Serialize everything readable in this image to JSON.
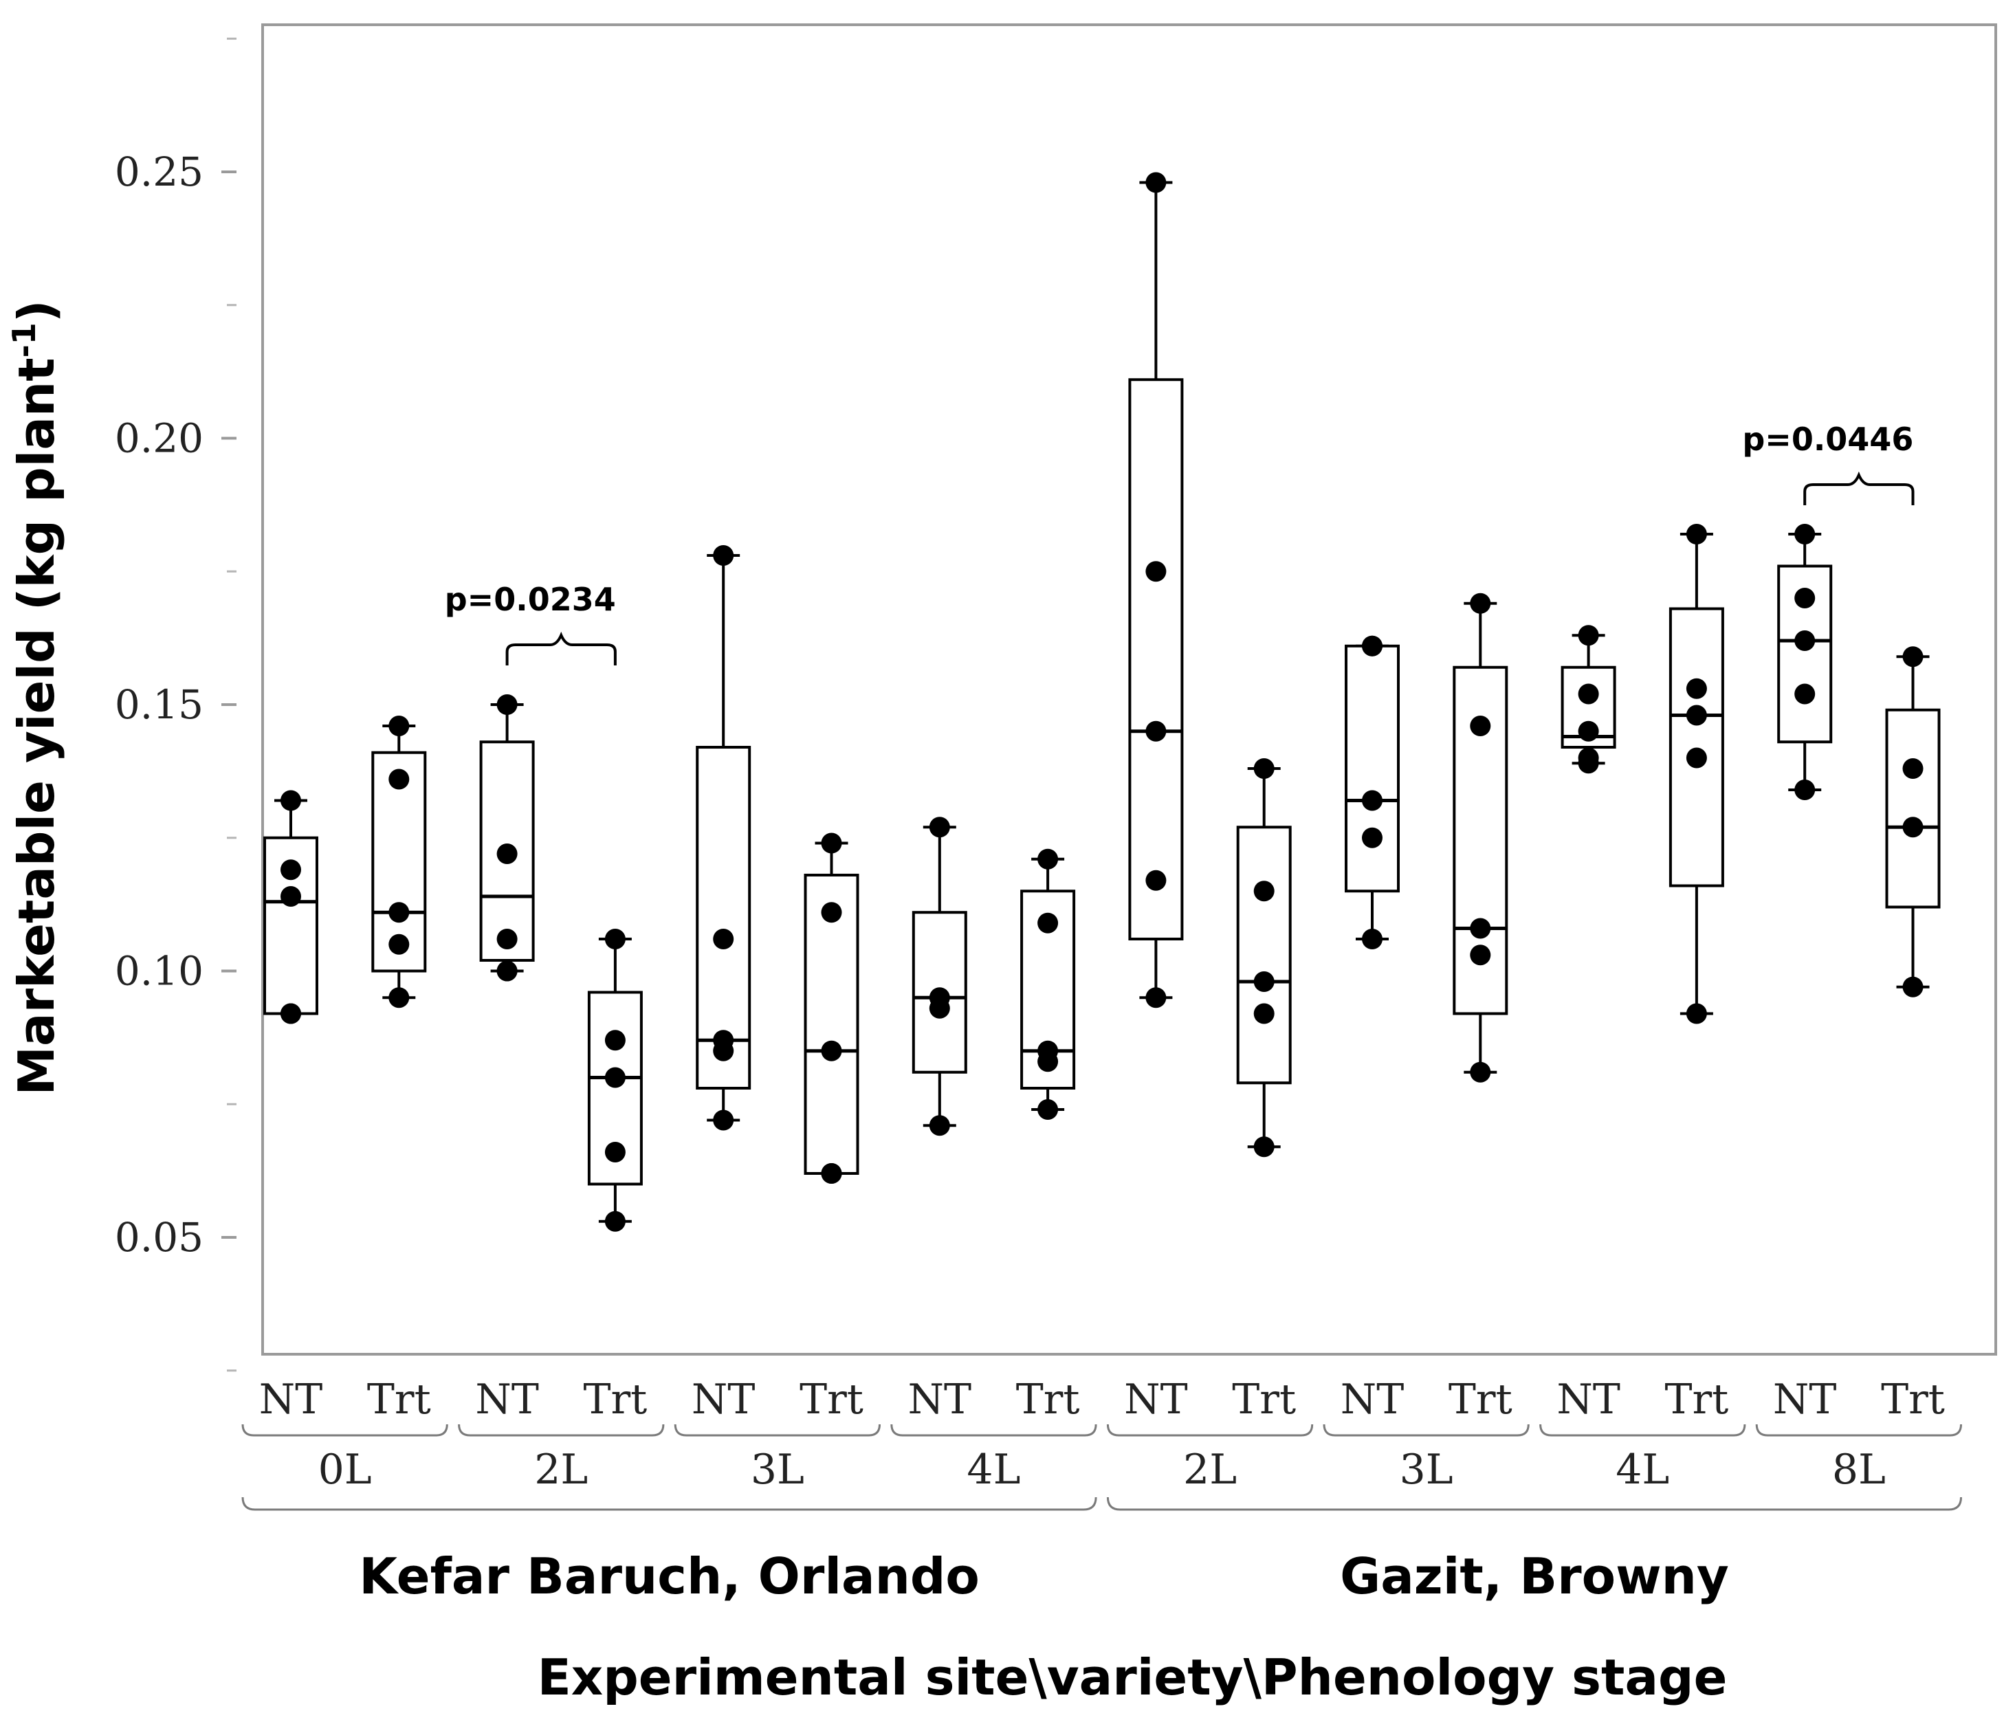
{
  "chart_data": {
    "type": "box",
    "ylabel": "Marketable yield (kg plant",
    "ylabel_sup": "-1",
    "ylabel_close": ")",
    "xlabel": "Experimental site\\variety\\Phenology stage",
    "ylim": [
      0.025,
      0.28
    ],
    "yticks": [
      0.05,
      0.1,
      0.15,
      0.2,
      0.25
    ],
    "ytick_labels": [
      "0.05",
      "0.10",
      "0.15",
      "0.20",
      "0.25"
    ],
    "sites": [
      {
        "name": "Kefar Baruch, Orlando",
        "stages": [
          "0L",
          "2L",
          "3L",
          "4L"
        ]
      },
      {
        "name": "Gazit, Browny",
        "stages": [
          "2L",
          "3L",
          "4L",
          "8L"
        ]
      }
    ],
    "treatments": [
      "NT",
      "Trt"
    ],
    "boxes": [
      {
        "site": "Kefar Baruch, Orlando",
        "stage": "0L",
        "treatment": "NT",
        "whisker_low": 0.092,
        "q1": 0.092,
        "median": 0.113,
        "q3": 0.125,
        "whisker_high": 0.132,
        "points": [
          0.119,
          0.114,
          0.092
        ]
      },
      {
        "site": "Kefar Baruch, Orlando",
        "stage": "0L",
        "treatment": "Trt",
        "whisker_low": 0.095,
        "q1": 0.1,
        "median": 0.111,
        "q3": 0.141,
        "whisker_high": 0.146,
        "points": [
          0.136,
          0.111,
          0.105
        ]
      },
      {
        "site": "Kefar Baruch, Orlando",
        "stage": "2L",
        "treatment": "NT",
        "whisker_low": 0.1,
        "q1": 0.102,
        "median": 0.114,
        "q3": 0.143,
        "whisker_high": 0.15,
        "points": [
          0.122,
          0.106,
          0.1
        ]
      },
      {
        "site": "Kefar Baruch, Orlando",
        "stage": "2L",
        "treatment": "Trt",
        "whisker_low": 0.053,
        "q1": 0.06,
        "median": 0.08,
        "q3": 0.096,
        "whisker_high": 0.106,
        "points": [
          0.087,
          0.08,
          0.066
        ]
      },
      {
        "site": "Kefar Baruch, Orlando",
        "stage": "3L",
        "treatment": "NT",
        "whisker_low": 0.072,
        "q1": 0.078,
        "median": 0.087,
        "q3": 0.142,
        "whisker_high": 0.178,
        "points": [
          0.106,
          0.087,
          0.085
        ]
      },
      {
        "site": "Kefar Baruch, Orlando",
        "stage": "3L",
        "treatment": "Trt",
        "whisker_low": 0.062,
        "q1": 0.062,
        "median": 0.085,
        "q3": 0.118,
        "whisker_high": 0.124,
        "points": [
          0.111,
          0.085,
          0.062
        ]
      },
      {
        "site": "Kefar Baruch, Orlando",
        "stage": "4L",
        "treatment": "NT",
        "whisker_low": 0.071,
        "q1": 0.081,
        "median": 0.095,
        "q3": 0.111,
        "whisker_high": 0.127,
        "points": [
          0.095,
          0.093
        ]
      },
      {
        "site": "Kefar Baruch, Orlando",
        "stage": "4L",
        "treatment": "Trt",
        "whisker_low": 0.074,
        "q1": 0.078,
        "median": 0.085,
        "q3": 0.115,
        "whisker_high": 0.121,
        "points": [
          0.109,
          0.085,
          0.083
        ]
      },
      {
        "site": "Gazit, Browny",
        "stage": "2L",
        "treatment": "NT",
        "whisker_low": 0.095,
        "q1": 0.106,
        "median": 0.145,
        "q3": 0.211,
        "whisker_high": 0.248,
        "points": [
          0.175,
          0.145,
          0.117
        ]
      },
      {
        "site": "Gazit, Browny",
        "stage": "2L",
        "treatment": "Trt",
        "whisker_low": 0.067,
        "q1": 0.079,
        "median": 0.098,
        "q3": 0.127,
        "whisker_high": 0.138,
        "points": [
          0.115,
          0.098,
          0.092
        ]
      },
      {
        "site": "Gazit, Browny",
        "stage": "3L",
        "treatment": "NT",
        "whisker_low": 0.106,
        "q1": 0.115,
        "median": 0.132,
        "q3": 0.161,
        "whisker_high": 0.161,
        "points": [
          0.161,
          0.132,
          0.125
        ]
      },
      {
        "site": "Gazit, Browny",
        "stage": "3L",
        "treatment": "Trt",
        "whisker_low": 0.081,
        "q1": 0.092,
        "median": 0.108,
        "q3": 0.157,
        "whisker_high": 0.169,
        "points": [
          0.146,
          0.108,
          0.103
        ]
      },
      {
        "site": "Gazit, Browny",
        "stage": "4L",
        "treatment": "NT",
        "whisker_low": 0.139,
        "q1": 0.142,
        "median": 0.144,
        "q3": 0.157,
        "whisker_high": 0.163,
        "points": [
          0.152,
          0.145,
          0.14
        ]
      },
      {
        "site": "Gazit, Browny",
        "stage": "4L",
        "treatment": "Trt",
        "whisker_low": 0.092,
        "q1": 0.116,
        "median": 0.148,
        "q3": 0.168,
        "whisker_high": 0.182,
        "points": [
          0.153,
          0.148,
          0.14
        ]
      },
      {
        "site": "Gazit, Browny",
        "stage": "8L",
        "treatment": "NT",
        "whisker_low": 0.134,
        "q1": 0.143,
        "median": 0.162,
        "q3": 0.176,
        "whisker_high": 0.182,
        "points": [
          0.17,
          0.162,
          0.152
        ]
      },
      {
        "site": "Gazit, Browny",
        "stage": "8L",
        "treatment": "Trt",
        "whisker_low": 0.097,
        "q1": 0.112,
        "median": 0.127,
        "q3": 0.149,
        "whisker_high": 0.159,
        "points": [
          0.138,
          0.127
        ]
      }
    ],
    "annotations": [
      {
        "text": "p=0.0234",
        "from_box": 2,
        "to_box": 3
      },
      {
        "text": "p=0.0446",
        "from_box": 14,
        "to_box": 15
      }
    ]
  }
}
